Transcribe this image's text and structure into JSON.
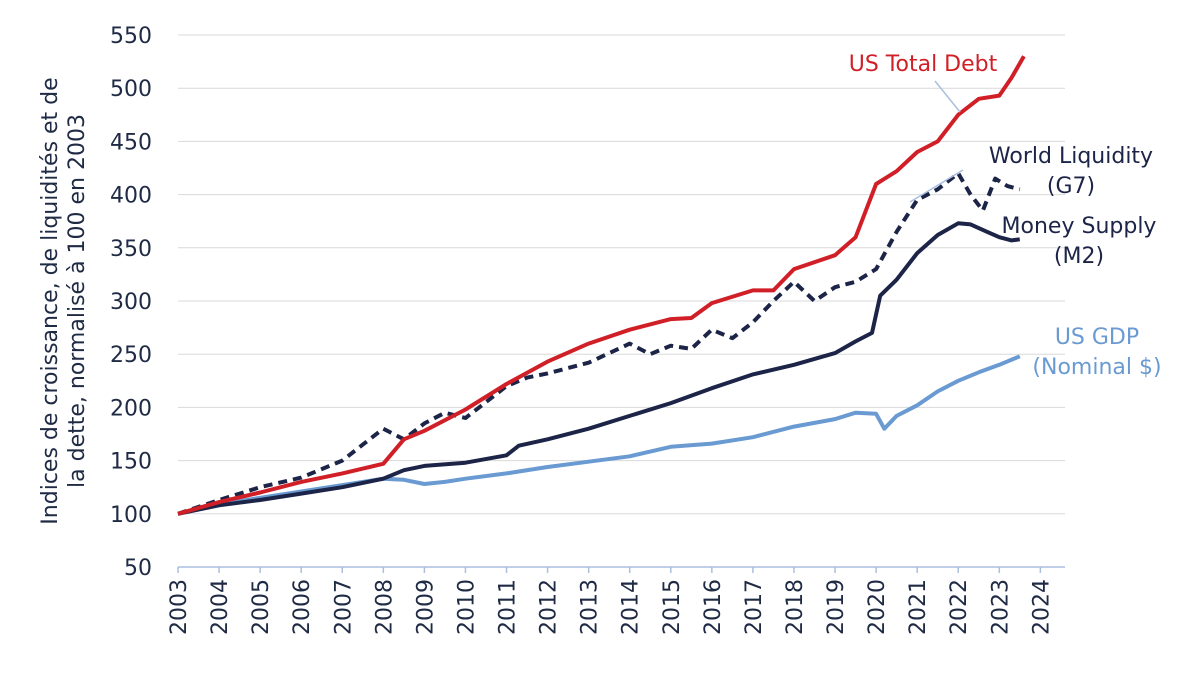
{
  "chart_data": {
    "type": "line",
    "title": "",
    "ylabel_lines": [
      "Indices de croissance, de liquidités et de",
      "la dette, normalisé à 100 en 2003"
    ],
    "xlim": [
      2003,
      2024.6
    ],
    "ylim": [
      50,
      550
    ],
    "yticks": [
      50,
      100,
      150,
      200,
      250,
      300,
      350,
      400,
      450,
      500,
      550
    ],
    "xticks": [
      "2003",
      "2004",
      "2005",
      "2006",
      "2007",
      "2008",
      "2009",
      "2010",
      "2011",
      "2012",
      "2013",
      "2014",
      "2015",
      "2016",
      "2017",
      "2018",
      "2019",
      "2020",
      "2021",
      "2022",
      "2023",
      "2024"
    ],
    "grid": true,
    "series": [
      {
        "name": "US GDP (Nominal $)",
        "label_lines": [
          "US GDP",
          "(Nominal $)"
        ],
        "color": "#6a9ad2",
        "dash": "",
        "points": [
          [
            2003,
            100
          ],
          [
            2004,
            109
          ],
          [
            2005,
            115
          ],
          [
            2006,
            121
          ],
          [
            2007,
            127
          ],
          [
            2008,
            133
          ],
          [
            2008.5,
            132
          ],
          [
            2009,
            128
          ],
          [
            2009.5,
            130
          ],
          [
            2010,
            133
          ],
          [
            2011,
            138
          ],
          [
            2012,
            144
          ],
          [
            2013,
            149
          ],
          [
            2014,
            154
          ],
          [
            2015,
            163
          ],
          [
            2016,
            166
          ],
          [
            2017,
            172
          ],
          [
            2018,
            182
          ],
          [
            2019,
            189
          ],
          [
            2019.5,
            195
          ],
          [
            2020,
            194
          ],
          [
            2020.2,
            180
          ],
          [
            2020.5,
            192
          ],
          [
            2021,
            202
          ],
          [
            2021.5,
            215
          ],
          [
            2022,
            225
          ],
          [
            2022.5,
            233
          ],
          [
            2023,
            240
          ],
          [
            2023.5,
            248
          ]
        ]
      },
      {
        "name": "Money Supply (M2)",
        "label_lines": [
          "Money Supply",
          "(M2)"
        ],
        "color": "#1c2447",
        "dash": "",
        "points": [
          [
            2003,
            100
          ],
          [
            2004,
            108
          ],
          [
            2005,
            113
          ],
          [
            2006,
            119
          ],
          [
            2007,
            125
          ],
          [
            2008,
            133
          ],
          [
            2008.5,
            141
          ],
          [
            2009,
            145
          ],
          [
            2010,
            148
          ],
          [
            2011,
            155
          ],
          [
            2011.3,
            164
          ],
          [
            2012,
            170
          ],
          [
            2013,
            180
          ],
          [
            2014,
            192
          ],
          [
            2015,
            204
          ],
          [
            2016,
            218
          ],
          [
            2017,
            231
          ],
          [
            2018,
            240
          ],
          [
            2019,
            251
          ],
          [
            2019.5,
            262
          ],
          [
            2019.9,
            270
          ],
          [
            2020.1,
            305
          ],
          [
            2020.5,
            320
          ],
          [
            2021,
            345
          ],
          [
            2021.5,
            362
          ],
          [
            2022,
            373
          ],
          [
            2022.3,
            372
          ],
          [
            2022.7,
            365
          ],
          [
            2023,
            360
          ],
          [
            2023.3,
            357
          ],
          [
            2023.5,
            358
          ]
        ]
      },
      {
        "name": "World Liquidity (G7)",
        "label_lines": [
          "World Liquidity",
          "(G7)"
        ],
        "color": "#1c2447",
        "dash": "9 6",
        "points": [
          [
            2003,
            100
          ],
          [
            2004,
            113
          ],
          [
            2004.5,
            119
          ],
          [
            2005,
            125
          ],
          [
            2006,
            134
          ],
          [
            2007,
            150
          ],
          [
            2007.5,
            165
          ],
          [
            2008,
            180
          ],
          [
            2008.5,
            170
          ],
          [
            2009,
            185
          ],
          [
            2009.5,
            195
          ],
          [
            2010,
            190
          ],
          [
            2010.5,
            205
          ],
          [
            2011,
            220
          ],
          [
            2011.5,
            228
          ],
          [
            2012,
            232
          ],
          [
            2013,
            242
          ],
          [
            2014,
            260
          ],
          [
            2014.5,
            250
          ],
          [
            2015,
            258
          ],
          [
            2015.5,
            255
          ],
          [
            2016,
            273
          ],
          [
            2016.5,
            265
          ],
          [
            2017,
            280
          ],
          [
            2017.5,
            300
          ],
          [
            2018,
            318
          ],
          [
            2018.5,
            300
          ],
          [
            2019,
            313
          ],
          [
            2019.5,
            318
          ],
          [
            2020,
            330
          ],
          [
            2020.5,
            365
          ],
          [
            2021,
            395
          ],
          [
            2021.5,
            405
          ],
          [
            2022,
            420
          ],
          [
            2022.3,
            400
          ],
          [
            2022.6,
            385
          ],
          [
            2022.9,
            415
          ],
          [
            2023.2,
            408
          ],
          [
            2023.5,
            405
          ]
        ]
      },
      {
        "name": "US Total Debt",
        "label_lines": [
          "US Total Debt"
        ],
        "color": "#d11f27",
        "dash": "",
        "points": [
          [
            2003,
            100
          ],
          [
            2004,
            111
          ],
          [
            2005,
            120
          ],
          [
            2006,
            130
          ],
          [
            2007,
            138
          ],
          [
            2008,
            147
          ],
          [
            2008.5,
            170
          ],
          [
            2009,
            178
          ],
          [
            2010,
            198
          ],
          [
            2011,
            222
          ],
          [
            2012,
            243
          ],
          [
            2013,
            260
          ],
          [
            2014,
            273
          ],
          [
            2015,
            283
          ],
          [
            2015.5,
            284
          ],
          [
            2016,
            298
          ],
          [
            2017,
            310
          ],
          [
            2017.5,
            310
          ],
          [
            2018,
            330
          ],
          [
            2019,
            343
          ],
          [
            2019.5,
            360
          ],
          [
            2020,
            410
          ],
          [
            2020.5,
            422
          ],
          [
            2021,
            440
          ],
          [
            2021.5,
            450
          ],
          [
            2022,
            475
          ],
          [
            2022.5,
            490
          ],
          [
            2023,
            493
          ],
          [
            2023.3,
            510
          ],
          [
            2023.6,
            530
          ]
        ]
      }
    ]
  }
}
